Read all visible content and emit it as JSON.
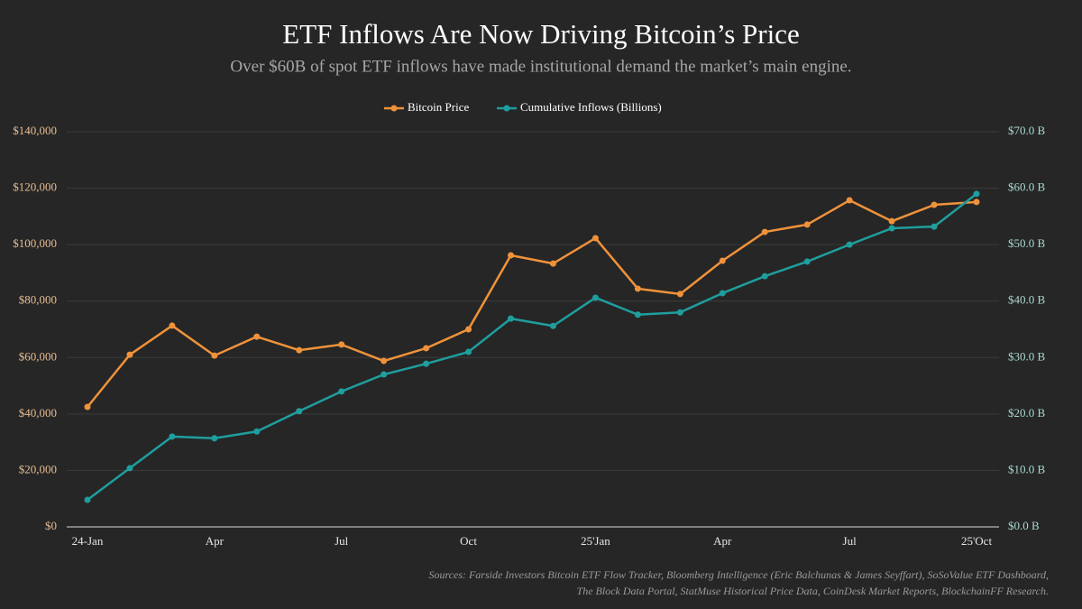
{
  "chart_data": {
    "type": "line",
    "title": "ETF Inflows Are Now Driving Bitcoin’s Price",
    "subtitle": "Over $60B of spot ETF inflows have made institutional demand the market’s main engine.",
    "categories": [
      "24-Jan",
      null,
      null,
      "Apr",
      null,
      null,
      "Jul",
      null,
      null,
      "Oct",
      null,
      null,
      "25'Jan",
      null,
      null,
      "Apr",
      null,
      null,
      "Jul",
      null,
      null,
      "25'Oct"
    ],
    "series": [
      {
        "name": "Bitcoin Price",
        "color": "#f0923a",
        "values": [
          42500,
          61000,
          71300,
          60700,
          67400,
          62600,
          64600,
          58800,
          63300,
          70000,
          96200,
          93300,
          102300,
          84400,
          82500,
          94300,
          104500,
          107100,
          115700,
          108300,
          114100,
          115100
        ]
      },
      {
        "name": "Cumulative Inflows (Billions)",
        "color": "#1f9e9e",
        "axis": "y2",
        "values": [
          4.8,
          10.4,
          16.0,
          15.7,
          16.9,
          20.5,
          24.0,
          27.0,
          28.9,
          31.0,
          36.9,
          35.6,
          40.6,
          37.6,
          38.0,
          41.4,
          44.4,
          47.0,
          50.0,
          52.9,
          53.2,
          59.0
        ]
      }
    ],
    "ylim": [
      0,
      140000
    ],
    "yticks": [
      {
        "value": 0,
        "label": "$0"
      },
      {
        "value": 20000,
        "label": "$20,000"
      },
      {
        "value": 40000,
        "label": "$40,000"
      },
      {
        "value": 60000,
        "label": "$60,000"
      },
      {
        "value": 80000,
        "label": "$80,000"
      },
      {
        "value": 100000,
        "label": "$100,000"
      },
      {
        "value": 120000,
        "label": "$120,000"
      },
      {
        "value": 140000,
        "label": "$140,000"
      }
    ],
    "y2lim": [
      0,
      70
    ],
    "y2ticks": [
      {
        "value": 0,
        "label": "$0.0 B"
      },
      {
        "value": 10,
        "label": "$10.0 B"
      },
      {
        "value": 20,
        "label": "$20.0 B"
      },
      {
        "value": 30,
        "label": "$30.0 B"
      },
      {
        "value": 40,
        "label": "$40.0 B"
      },
      {
        "value": 50,
        "label": "$50.0 B"
      },
      {
        "value": 60,
        "label": "$60.0 B"
      },
      {
        "value": 70,
        "label": "$70.0 B"
      }
    ],
    "grid": true,
    "legend": "top",
    "sources": [
      "Sources: Farside Investors Bitcoin ETF Flow Tracker, Bloomberg Intelligence (Eric Balchunas & James Seyffart), SoSoValue ETF Dashboard,",
      "The Block Data Portal, StatMuse Historical Price Data, CoinDesk Market Reports, BlockchainFF Research."
    ]
  }
}
